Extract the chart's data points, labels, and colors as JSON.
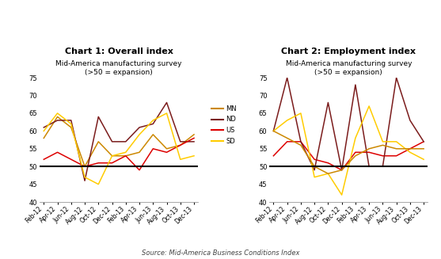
{
  "x_labels": [
    "Feb-12",
    "Apr-12",
    "Jun-12",
    "Aug-12",
    "Oct-12",
    "Dec-12",
    "Feb-13",
    "Apr-13",
    "Jun-13",
    "Aug-13",
    "Oct-13",
    "Dec-13"
  ],
  "chart1": {
    "title": "Chart 1: Overall index",
    "subtitle1": "Mid-America manufacturing survey",
    "subtitle2": "(>50 = expansion)",
    "MN": [
      58,
      64,
      61,
      50,
      57,
      53,
      53,
      54,
      59,
      55,
      56,
      59
    ],
    "ND": [
      61,
      63,
      63,
      46,
      64,
      57,
      57,
      61,
      62,
      68,
      57,
      57
    ],
    "US": [
      52,
      54,
      52,
      50,
      51,
      51,
      53,
      49,
      55,
      54,
      56,
      58
    ],
    "SD": [
      60,
      65,
      62,
      47,
      45,
      53,
      54,
      59,
      63,
      65,
      52,
      53
    ],
    "legend_order": [
      "MN",
      "ND",
      "US",
      "SD"
    ],
    "legend_colors": {
      "MN": "#CC8800",
      "ND": "#7B1C1C",
      "US": "#DD0000",
      "SD": "#FFCC00"
    }
  },
  "chart2": {
    "title": "Chart 2: Employment index",
    "subtitle1": "Mid-America manufacturing survey",
    "subtitle2": "(>50 = expansion)",
    "US": [
      53,
      57,
      57,
      52,
      51,
      49,
      54,
      54,
      53,
      53,
      55,
      57
    ],
    "ND": [
      60,
      75,
      57,
      49,
      68,
      49,
      73,
      50,
      50,
      75,
      63,
      57
    ],
    "SD": [
      60,
      63,
      65,
      47,
      48,
      42,
      58,
      67,
      57,
      57,
      54,
      52
    ],
    "MN": [
      60,
      58,
      56,
      50,
      48,
      49,
      53,
      55,
      56,
      55,
      55,
      55
    ],
    "legend_order": [
      "US",
      "ND",
      "SD",
      "MN"
    ],
    "legend_colors": {
      "US": "#DD0000",
      "ND": "#7B1C1C",
      "SD": "#FFCC00",
      "MN": "#CC8800"
    }
  },
  "ylim": [
    40,
    75
  ],
  "yticks": [
    40,
    45,
    50,
    55,
    60,
    65,
    70,
    75
  ],
  "hline": 50,
  "source": "Source: Mid-America Business Conditions Index",
  "bg_color": "#FFFFFF"
}
